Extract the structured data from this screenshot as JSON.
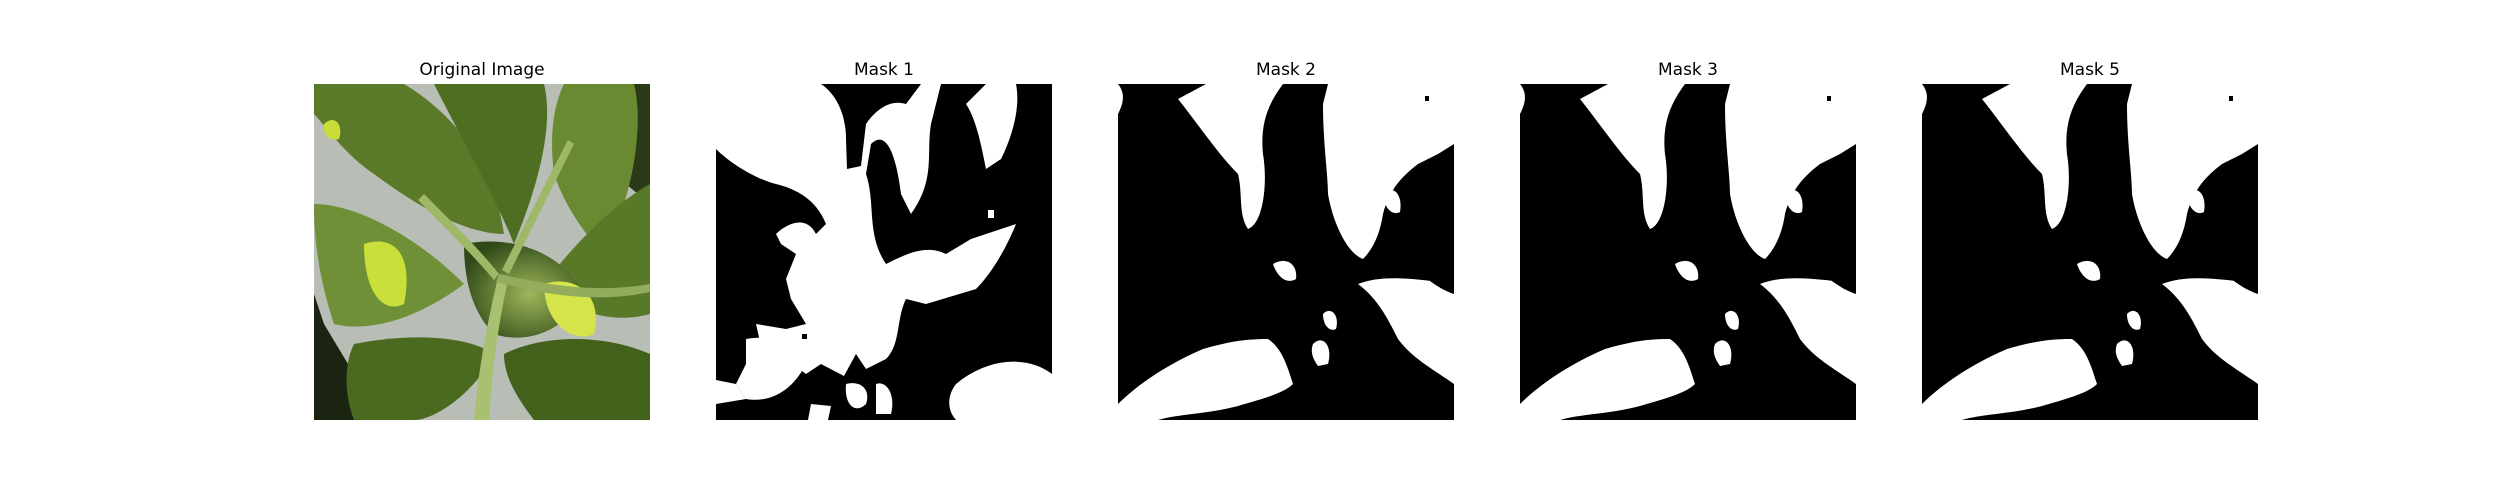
{
  "figure": {
    "panels": [
      {
        "title": "Original Image"
      },
      {
        "title": "Mask 1"
      },
      {
        "title": "Mask 2"
      },
      {
        "title": "Mask 3"
      },
      {
        "title": "Mask 5"
      }
    ],
    "colors": {
      "mask_foreground": "#ffffff",
      "mask_background": "#000000",
      "leaf_dark": "#3c5a1e",
      "leaf_mid": "#6e8c32",
      "leaf_light": "#c8dc3c",
      "background_gray": "#b4b9b4"
    }
  }
}
